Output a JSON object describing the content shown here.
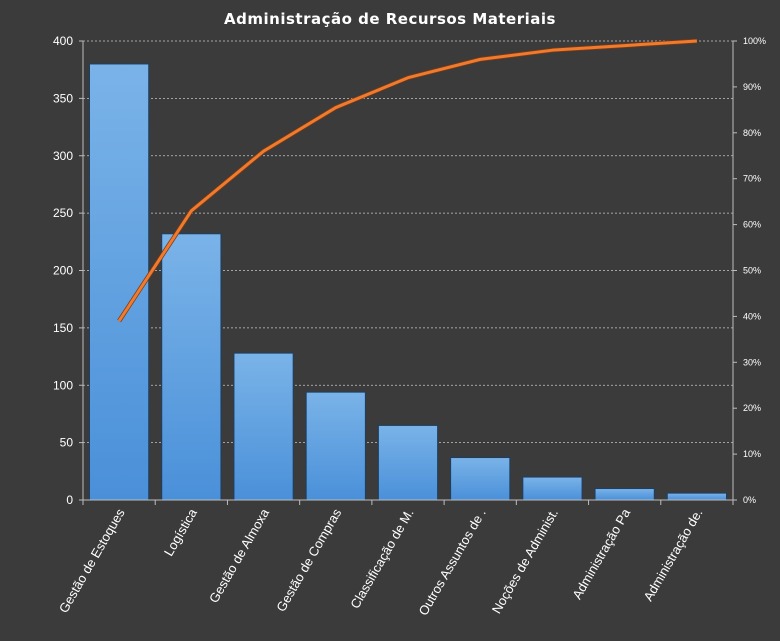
{
  "chart_data": {
    "type": "bar",
    "title": "Administração  de Recursos  Materiais",
    "categories": [
      "Gestão de Estoques",
      "Logística",
      "Gestão de Almoxa",
      "Gestão de Compras",
      "Classificação de M.",
      "Outros Assuntos de .",
      "Noções de Administ.",
      "Administração Pa",
      "Administração de."
    ],
    "series": [
      {
        "type": "bar",
        "values": [
          380,
          232,
          128,
          94,
          65,
          37,
          20,
          10,
          6
        ]
      },
      {
        "type": "line",
        "axis": "right",
        "values": [
          0.39,
          0.63,
          0.76,
          0.855,
          0.92,
          0.96,
          0.98,
          0.99,
          1.0
        ]
      }
    ],
    "ylim": [
      0,
      400
    ],
    "yticks": [
      "0",
      "50",
      "100",
      "150",
      "200",
      "250",
      "300",
      "350",
      "400"
    ],
    "y2lim": [
      0,
      1
    ],
    "y2ticks": [
      "0%",
      "10%",
      "20%",
      "30%",
      "40%",
      "50%",
      "60%",
      "70%",
      "80%",
      "90%",
      "100%"
    ],
    "grid": true,
    "colors": {
      "bar": "#4a90d9",
      "bar_top": "#7ab3e8",
      "line": "#f07a2e",
      "background": "#3b3b3b",
      "text": "#ffffff"
    }
  }
}
